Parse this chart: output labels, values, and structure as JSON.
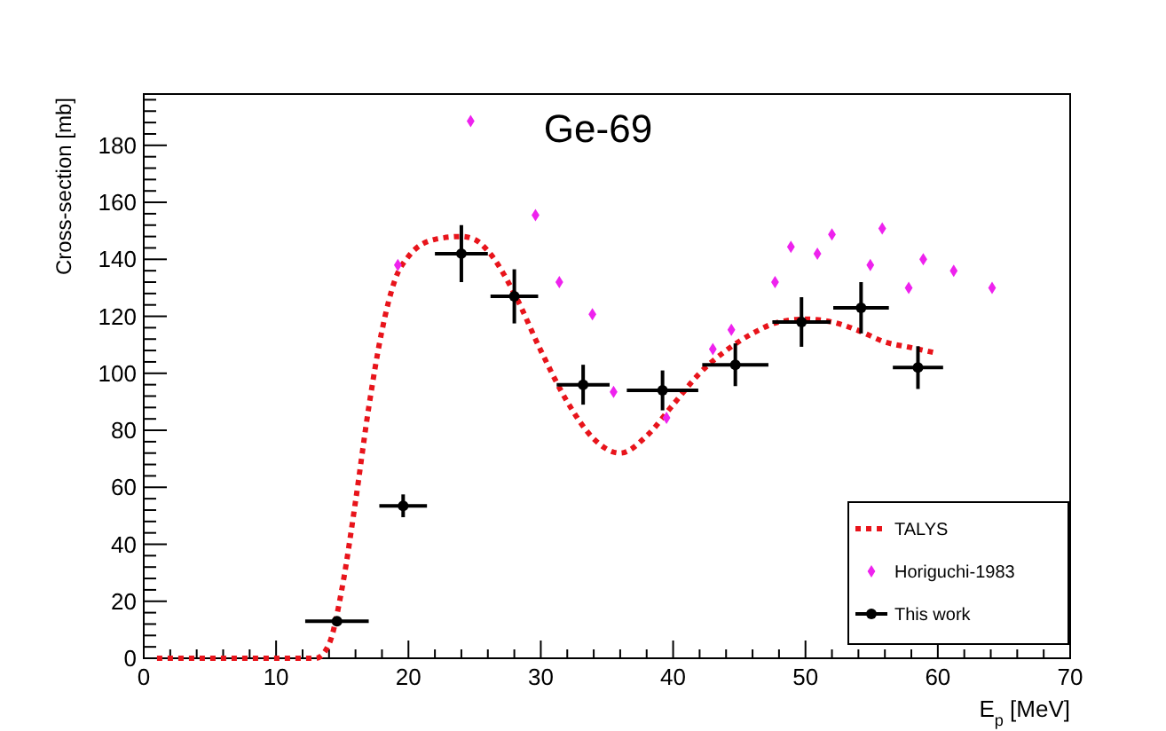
{
  "chart_data": {
    "type": "scatter",
    "title": "Ge-69",
    "xlabel": "E$_{p}$ [MeV]",
    "ylabel": "Cross-section [mb]",
    "xlim": [
      0,
      70
    ],
    "xticks": [
      0,
      10,
      20,
      30,
      40,
      50,
      60,
      70
    ],
    "ylim": [
      0,
      198
    ],
    "yticks": [
      0,
      20,
      40,
      60,
      80,
      100,
      120,
      140,
      160,
      180
    ],
    "grid": false,
    "legend": "bottom right",
    "series": [
      {
        "name": "TALYS",
        "type": "line",
        "color": "#e8141b",
        "line_style": "dotted",
        "marker": "none",
        "x": [
          1,
          13,
          14,
          15,
          16,
          17,
          18,
          19,
          20,
          22,
          24,
          25,
          26,
          28,
          30,
          32,
          34,
          36,
          38,
          40,
          42,
          44,
          46,
          48,
          50,
          52,
          54,
          56,
          58,
          60
        ],
        "values": [
          0,
          0,
          5,
          25,
          55,
          88,
          115,
          133,
          141,
          147,
          148,
          147,
          143,
          128,
          108,
          90,
          77,
          72,
          78,
          89,
          100,
          108,
          114,
          118,
          119,
          118,
          115,
          111,
          109,
          107
        ]
      },
      {
        "name": "Horiguchi-1983",
        "color": "#ee22ee",
        "marker": "diamond",
        "x": [
          19.2,
          24.7,
          29.6,
          31.4,
          33.9,
          35.5,
          39.5,
          43.0,
          44.4,
          47.7,
          48.9,
          50.9,
          52.0,
          54.9,
          55.8,
          57.8,
          58.9,
          61.2,
          64.1
        ],
        "values": [
          138,
          188.5,
          155.5,
          132,
          120.7,
          93.5,
          84.4,
          108.5,
          115.3,
          132,
          144.4,
          142,
          148.7,
          138,
          150.8,
          130,
          140,
          136,
          130
        ]
      },
      {
        "name": "This work",
        "color": "#000000",
        "marker": "circle",
        "x": [
          14.6,
          19.6,
          24.0,
          28.0,
          33.2,
          39.2,
          44.7,
          49.7,
          54.2,
          58.5
        ],
        "values": [
          13,
          53.5,
          142,
          127,
          96,
          94,
          103,
          118,
          123,
          102
        ],
        "errors": [
          1.5,
          4,
          10,
          9.5,
          7,
          7,
          7.5,
          8.7,
          9,
          7.5
        ],
        "xerrors": [
          2.4,
          1.8,
          2,
          1.8,
          2,
          2.7,
          2.5,
          2.2,
          2.1,
          1.9
        ]
      }
    ]
  }
}
